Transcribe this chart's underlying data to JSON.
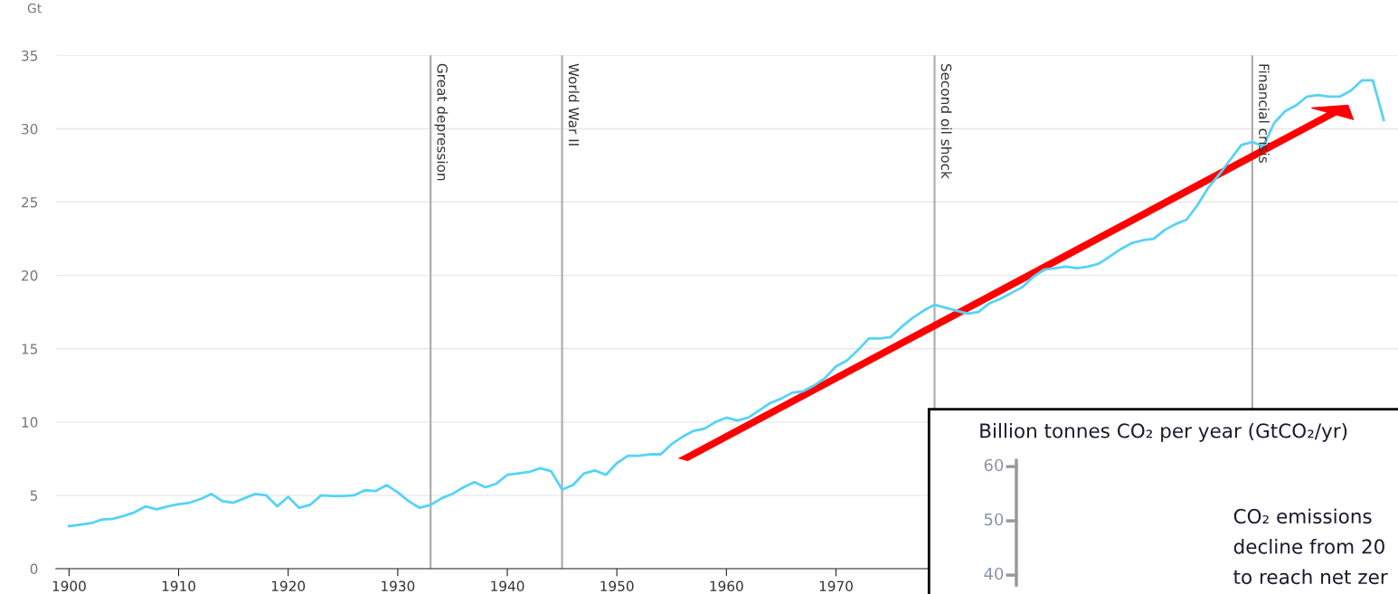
{
  "chart_data": [
    {
      "type": "line",
      "ylabel": "Gt",
      "x": [
        1900,
        1901,
        1902,
        1903,
        1904,
        1905,
        1906,
        1907,
        1908,
        1909,
        1910,
        1911,
        1912,
        1913,
        1914,
        1915,
        1916,
        1917,
        1918,
        1919,
        1920,
        1921,
        1922,
        1923,
        1924,
        1925,
        1926,
        1927,
        1928,
        1929,
        1930,
        1931,
        1932,
        1933,
        1934,
        1935,
        1936,
        1937,
        1938,
        1939,
        1940,
        1941,
        1942,
        1943,
        1944,
        1945,
        1946,
        1947,
        1948,
        1949,
        1950,
        1951,
        1952,
        1953,
        1954,
        1955,
        1956,
        1957,
        1958,
        1959,
        1960,
        1961,
        1962,
        1963,
        1964,
        1965,
        1966,
        1967,
        1968,
        1969,
        1970,
        1971,
        1972,
        1973,
        1974,
        1975,
        1976,
        1977,
        1978,
        1979,
        1980,
        1981,
        1982,
        1983,
        1984,
        1985,
        1986,
        1987,
        1988,
        1989,
        1990,
        1991,
        1992,
        1993,
        1994,
        1995,
        1996,
        1997,
        1998,
        1999,
        2000,
        2001,
        2002,
        2003,
        2004,
        2005,
        2006,
        2007,
        2008,
        2009,
        2010,
        2011,
        2012,
        2013,
        2014,
        2015,
        2016,
        2017,
        2018,
        2019,
        2020
      ],
      "series": [
        {
          "color": "#55d3f8",
          "values": [
            2.9,
            3.0,
            3.1,
            3.35,
            3.4,
            3.6,
            3.85,
            4.25,
            4.05,
            4.25,
            4.4,
            4.5,
            4.75,
            5.1,
            4.6,
            4.5,
            4.8,
            5.1,
            5.0,
            4.25,
            4.9,
            4.15,
            4.35,
            5.0,
            4.95,
            4.95,
            5.0,
            5.35,
            5.3,
            5.7,
            5.2,
            4.6,
            4.15,
            4.35,
            4.8,
            5.1,
            5.55,
            5.9,
            5.55,
            5.8,
            6.4,
            6.5,
            6.6,
            6.85,
            6.65,
            5.4,
            5.7,
            6.5,
            6.7,
            6.4,
            7.2,
            7.7,
            7.7,
            7.8,
            7.8,
            8.5,
            9.0,
            9.4,
            9.55,
            10.0,
            10.3,
            10.1,
            10.3,
            10.8,
            11.3,
            11.6,
            12.0,
            12.1,
            12.5,
            13.0,
            13.8,
            14.2,
            14.9,
            15.7,
            15.7,
            15.8,
            16.5,
            17.1,
            17.6,
            18.0,
            17.8,
            17.6,
            17.4,
            17.5,
            18.1,
            18.4,
            18.8,
            19.2,
            19.9,
            20.4,
            20.5,
            20.6,
            20.5,
            20.6,
            20.8,
            21.3,
            21.8,
            22.2,
            22.4,
            22.5,
            23.1,
            23.5,
            23.8,
            24.8,
            26.0,
            26.9,
            27.9,
            28.9,
            29.1,
            28.8,
            30.4,
            31.2,
            31.6,
            32.2,
            32.3,
            32.2,
            32.2,
            32.6,
            33.3,
            33.3,
            30.6
          ]
        }
      ],
      "xlim": [
        1898.8,
        2021.3
      ],
      "xticks": [
        1900,
        1910,
        1920,
        1930,
        1940,
        1950,
        1960,
        1970
      ],
      "ylim": [
        0,
        35
      ],
      "yticks": [
        0,
        5,
        10,
        15,
        20,
        25,
        30,
        35
      ],
      "grid": "y",
      "marker": "none",
      "line_style": "solid",
      "ref_lines": [
        {
          "axis": "x",
          "value": 1933,
          "label": "Great depression",
          "color": "#aaaaaa"
        },
        {
          "axis": "x",
          "value": 1945,
          "label": "World War II",
          "color": "#aaaaaa"
        },
        {
          "axis": "x",
          "value": 1979,
          "label": "Second oil shock",
          "color": "#aaaaaa"
        },
        {
          "axis": "x",
          "value": 2008,
          "label": "Financial crisis",
          "color": "#aaaaaa"
        }
      ]
    },
    {
      "type": "other",
      "title": "Billion tonnes CO₂ per year (GtCO₂/yr)",
      "annotations": [
        "60",
        "50",
        "40",
        "CO₂ emissions",
        "decline from 20",
        "to reach net zer"
      ]
    }
  ]
}
